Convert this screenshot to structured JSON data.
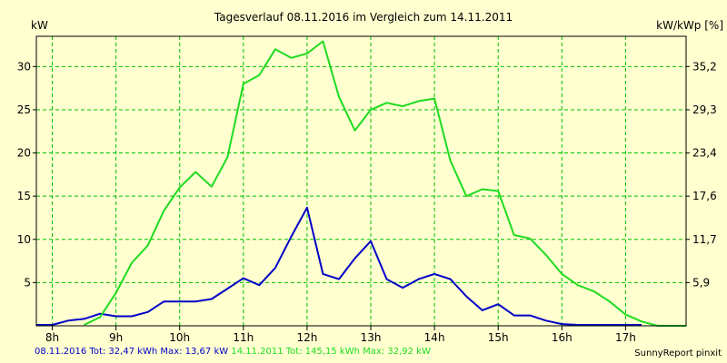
{
  "chart_data": {
    "type": "line",
    "title": "Tagesverlauf 08.11.2016 im Vergleich zum 14.11.2011",
    "ylabel": "kW",
    "ylabel_right": "kW/kWp [%]",
    "xlim": [
      7.75,
      17.95
    ],
    "ylim": [
      0,
      33.5
    ],
    "x_ticks": [
      8,
      9,
      10,
      11,
      12,
      13,
      14,
      15,
      16,
      17
    ],
    "x_tick_labels": [
      "8h",
      "9h",
      "10h",
      "11h",
      "12h",
      "13h",
      "14h",
      "15h",
      "16h",
      "17h"
    ],
    "y_ticks": [
      5,
      10,
      15,
      20,
      25,
      30
    ],
    "y_tick_labels": [
      "5",
      "10",
      "15",
      "20",
      "25",
      "30"
    ],
    "y_right_tick_labels": [
      "5,9",
      "11,7",
      "17,6",
      "23,4",
      "29,3",
      "35,2"
    ],
    "grid": true,
    "series": [
      {
        "name": "08.11.2016",
        "color": "#0000c8",
        "x": [
          7.75,
          8.0,
          8.25,
          8.5,
          8.75,
          9.0,
          9.25,
          9.5,
          9.75,
          10.0,
          10.25,
          10.5,
          10.75,
          11.0,
          11.25,
          11.5,
          11.75,
          12.0,
          12.25,
          12.5,
          12.75,
          13.0,
          13.25,
          13.5,
          13.75,
          14.0,
          14.25,
          14.5,
          14.75,
          15.0,
          15.25,
          15.5,
          15.75,
          16.0,
          16.25,
          16.5,
          16.75,
          17.0,
          17.25
        ],
        "y": [
          0.1,
          0.1,
          0.6,
          0.8,
          1.4,
          1.1,
          1.1,
          1.6,
          2.8,
          2.8,
          2.8,
          3.1,
          4.3,
          5.5,
          4.7,
          6.7,
          10.3,
          13.67,
          6.0,
          5.4,
          7.8,
          9.8,
          5.4,
          4.4,
          5.4,
          6.0,
          5.4,
          3.4,
          1.8,
          2.5,
          1.2,
          1.2,
          0.6,
          0.2,
          0.1,
          0.1,
          0.1,
          0.1,
          0.1
        ]
      },
      {
        "name": "14.11.2011",
        "color": "#1fdb1f",
        "x": [
          8.5,
          8.75,
          9.0,
          9.25,
          9.5,
          9.75,
          10.0,
          10.25,
          10.5,
          10.75,
          11.0,
          11.25,
          11.5,
          11.75,
          12.0,
          12.25,
          12.5,
          12.75,
          13.0,
          13.25,
          13.5,
          13.75,
          14.0,
          14.25,
          14.5,
          14.75,
          15.0,
          15.25,
          15.5,
          15.75,
          16.0,
          16.25,
          16.5,
          16.75,
          17.0,
          17.25,
          17.5,
          17.75,
          17.95
        ],
        "y": [
          0.1,
          1.0,
          3.8,
          7.3,
          9.3,
          13.3,
          16.0,
          17.8,
          16.1,
          19.5,
          28.0,
          29.0,
          32.0,
          31.0,
          31.5,
          32.92,
          26.5,
          22.6,
          25.0,
          25.8,
          25.4,
          26.0,
          26.3,
          19.1,
          15.0,
          15.8,
          15.6,
          10.5,
          10.1,
          8.2,
          6.0,
          4.7,
          4.0,
          2.8,
          1.3,
          0.5,
          0.0,
          0.0,
          0.0
        ]
      }
    ]
  },
  "footer": {
    "series1": "08.11.2016 Tot: 32,47 kWh Max: 13,67 kW",
    "series2": "14.11.2011 Tot: 145,15 kWh Max: 32,92 kW"
  },
  "credit": "SunnyReport pinxit"
}
